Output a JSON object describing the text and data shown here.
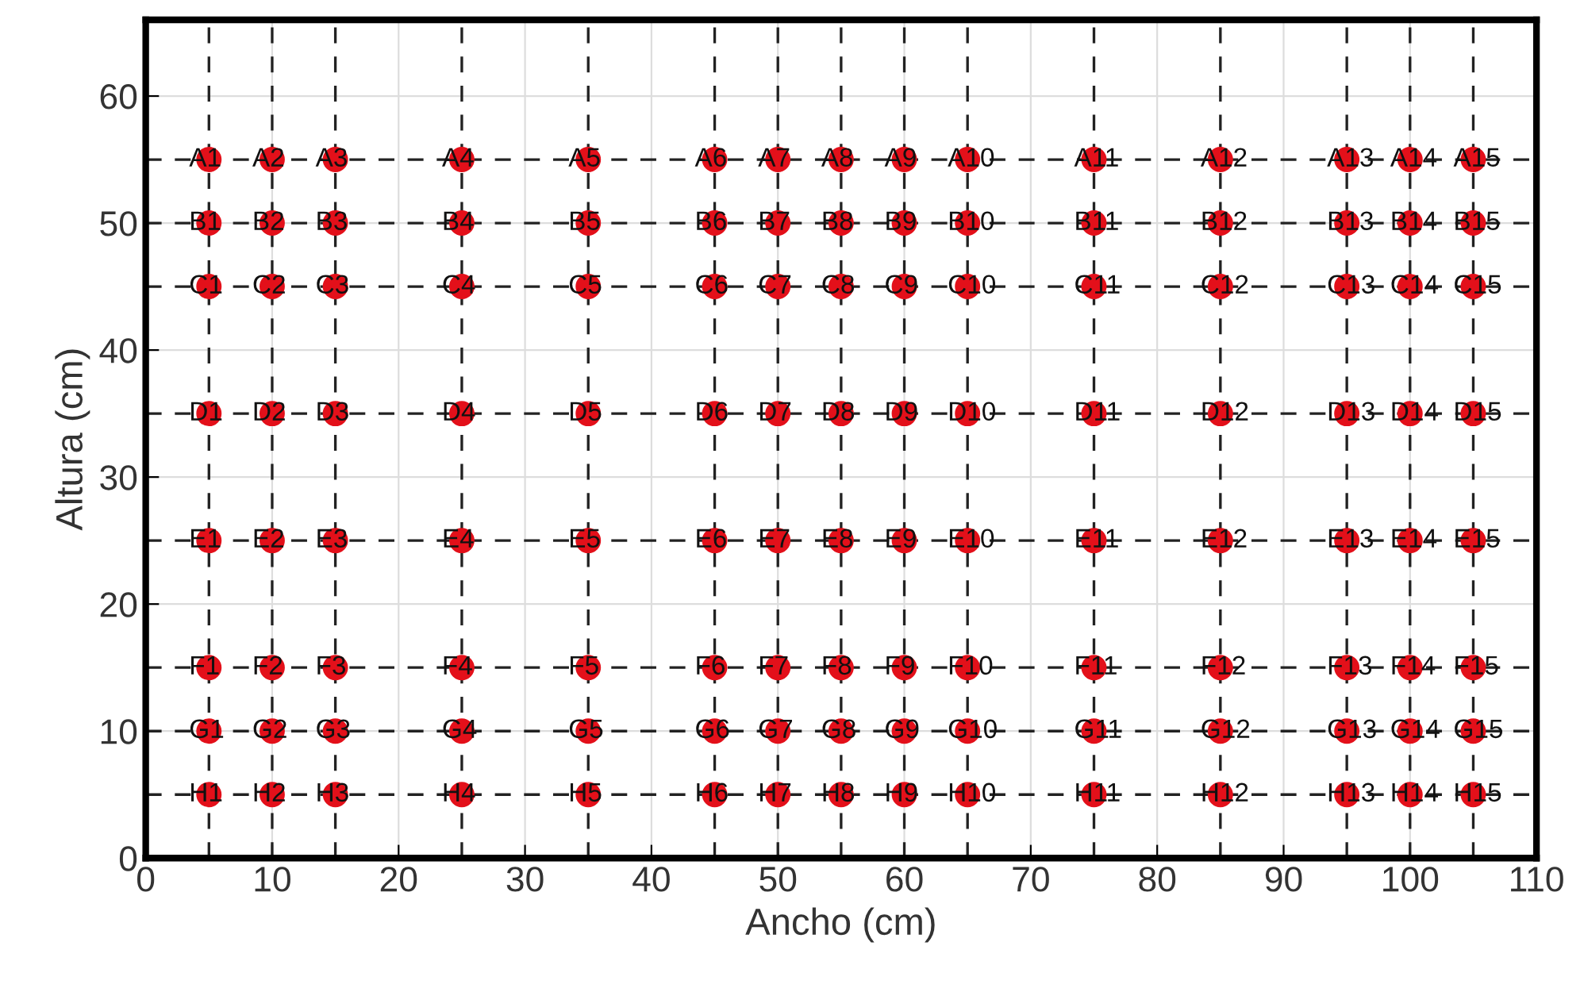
{
  "chart_data": {
    "type": "scatter",
    "xlabel": "Ancho (cm)",
    "ylabel": "Altura (cm)",
    "xlim": [
      0,
      110
    ],
    "ylim": [
      0,
      66
    ],
    "xticks": [
      0,
      10,
      20,
      30,
      40,
      50,
      60,
      70,
      80,
      90,
      100,
      110
    ],
    "yticks": [
      0,
      10,
      20,
      30,
      40,
      50,
      60
    ],
    "grid": true,
    "marker": "circle",
    "series": [
      {
        "color": "#e3101a",
        "x": [
          5,
          10,
          15,
          25,
          35,
          45,
          50,
          55,
          60,
          65,
          75,
          85,
          95,
          100,
          105
        ],
        "values": [
          55,
          55,
          55,
          55,
          55,
          55,
          55,
          55,
          55,
          55,
          55,
          55,
          55,
          55,
          55
        ]
      },
      {
        "color": "#e3101a",
        "x": [
          5,
          10,
          15,
          25,
          35,
          45,
          50,
          55,
          60,
          65,
          75,
          85,
          95,
          100,
          105
        ],
        "values": [
          50,
          50,
          50,
          50,
          50,
          50,
          50,
          50,
          50,
          50,
          50,
          50,
          50,
          50,
          50
        ]
      },
      {
        "color": "#e3101a",
        "x": [
          5,
          10,
          15,
          25,
          35,
          45,
          50,
          55,
          60,
          65,
          75,
          85,
          95,
          100,
          105
        ],
        "values": [
          45,
          45,
          45,
          45,
          45,
          45,
          45,
          45,
          45,
          45,
          45,
          45,
          45,
          45,
          45
        ]
      },
      {
        "color": "#e3101a",
        "x": [
          5,
          10,
          15,
          25,
          35,
          45,
          50,
          55,
          60,
          65,
          75,
          85,
          95,
          100,
          105
        ],
        "values": [
          35,
          35,
          35,
          35,
          35,
          35,
          35,
          35,
          35,
          35,
          35,
          35,
          35,
          35,
          35
        ]
      },
      {
        "color": "#e3101a",
        "x": [
          5,
          10,
          15,
          25,
          35,
          45,
          50,
          55,
          60,
          65,
          75,
          85,
          95,
          100,
          105
        ],
        "values": [
          25,
          25,
          25,
          25,
          25,
          25,
          25,
          25,
          25,
          25,
          25,
          25,
          25,
          25,
          25
        ]
      },
      {
        "color": "#e3101a",
        "x": [
          5,
          10,
          15,
          25,
          35,
          45,
          50,
          55,
          60,
          65,
          75,
          85,
          95,
          100,
          105
        ],
        "values": [
          15,
          15,
          15,
          15,
          15,
          15,
          15,
          15,
          15,
          15,
          15,
          15,
          15,
          15,
          15
        ]
      },
      {
        "color": "#e3101a",
        "x": [
          5,
          10,
          15,
          25,
          35,
          45,
          50,
          55,
          60,
          65,
          75,
          85,
          95,
          100,
          105
        ],
        "values": [
          10,
          10,
          10,
          10,
          10,
          10,
          10,
          10,
          10,
          10,
          10,
          10,
          10,
          10,
          10
        ]
      },
      {
        "color": "#e3101a",
        "x": [
          5,
          10,
          15,
          25,
          35,
          45,
          50,
          55,
          60,
          65,
          75,
          85,
          95,
          100,
          105
        ],
        "values": [
          5,
          5,
          5,
          5,
          5,
          5,
          5,
          5,
          5,
          5,
          5,
          5,
          5,
          5,
          5
        ]
      }
    ],
    "ref_lines": [
      {
        "axis": "x",
        "value": 5,
        "color": "#222222",
        "line_style": "dashed"
      },
      {
        "axis": "x",
        "value": 10,
        "color": "#222222",
        "line_style": "dashed"
      },
      {
        "axis": "x",
        "value": 15,
        "color": "#222222",
        "line_style": "dashed"
      },
      {
        "axis": "x",
        "value": 25,
        "color": "#222222",
        "line_style": "dashed"
      },
      {
        "axis": "x",
        "value": 35,
        "color": "#222222",
        "line_style": "dashed"
      },
      {
        "axis": "x",
        "value": 45,
        "color": "#222222",
        "line_style": "dashed"
      },
      {
        "axis": "x",
        "value": 50,
        "color": "#222222",
        "line_style": "dashed"
      },
      {
        "axis": "x",
        "value": 55,
        "color": "#222222",
        "line_style": "dashed"
      },
      {
        "axis": "x",
        "value": 60,
        "color": "#222222",
        "line_style": "dashed"
      },
      {
        "axis": "x",
        "value": 65,
        "color": "#222222",
        "line_style": "dashed"
      },
      {
        "axis": "x",
        "value": 75,
        "color": "#222222",
        "line_style": "dashed"
      },
      {
        "axis": "x",
        "value": 85,
        "color": "#222222",
        "line_style": "dashed"
      },
      {
        "axis": "x",
        "value": 95,
        "color": "#222222",
        "line_style": "dashed"
      },
      {
        "axis": "x",
        "value": 100,
        "color": "#222222",
        "line_style": "dashed"
      },
      {
        "axis": "x",
        "value": 105,
        "color": "#222222",
        "line_style": "dashed"
      },
      {
        "axis": "y",
        "value": 55,
        "color": "#222222",
        "line_style": "dashed"
      },
      {
        "axis": "y",
        "value": 50,
        "color": "#222222",
        "line_style": "dashed"
      },
      {
        "axis": "y",
        "value": 45,
        "color": "#222222",
        "line_style": "dashed"
      },
      {
        "axis": "y",
        "value": 35,
        "color": "#222222",
        "line_style": "dashed"
      },
      {
        "axis": "y",
        "value": 25,
        "color": "#222222",
        "line_style": "dashed"
      },
      {
        "axis": "y",
        "value": 15,
        "color": "#222222",
        "line_style": "dashed"
      },
      {
        "axis": "y",
        "value": 10,
        "color": "#222222",
        "line_style": "dashed"
      },
      {
        "axis": "y",
        "value": 5,
        "color": "#222222",
        "line_style": "dashed"
      }
    ],
    "annotations": [
      {
        "text": "A1",
        "x": 5,
        "y": 55
      },
      {
        "text": "A2",
        "x": 10,
        "y": 55
      },
      {
        "text": "A3",
        "x": 15,
        "y": 55
      },
      {
        "text": "A4",
        "x": 25,
        "y": 55
      },
      {
        "text": "A5",
        "x": 35,
        "y": 55
      },
      {
        "text": "A6",
        "x": 45,
        "y": 55
      },
      {
        "text": "A7",
        "x": 50,
        "y": 55
      },
      {
        "text": "A8",
        "x": 55,
        "y": 55
      },
      {
        "text": "A9",
        "x": 60,
        "y": 55
      },
      {
        "text": "A10",
        "x": 65,
        "y": 55
      },
      {
        "text": "A11",
        "x": 75,
        "y": 55
      },
      {
        "text": "A12",
        "x": 85,
        "y": 55
      },
      {
        "text": "A13",
        "x": 95,
        "y": 55
      },
      {
        "text": "A14",
        "x": 100,
        "y": 55
      },
      {
        "text": "A15",
        "x": 105,
        "y": 55
      },
      {
        "text": "B1",
        "x": 5,
        "y": 50
      },
      {
        "text": "B2",
        "x": 10,
        "y": 50
      },
      {
        "text": "B3",
        "x": 15,
        "y": 50
      },
      {
        "text": "B4",
        "x": 25,
        "y": 50
      },
      {
        "text": "B5",
        "x": 35,
        "y": 50
      },
      {
        "text": "B6",
        "x": 45,
        "y": 50
      },
      {
        "text": "B7",
        "x": 50,
        "y": 50
      },
      {
        "text": "B8",
        "x": 55,
        "y": 50
      },
      {
        "text": "B9",
        "x": 60,
        "y": 50
      },
      {
        "text": "B10",
        "x": 65,
        "y": 50
      },
      {
        "text": "B11",
        "x": 75,
        "y": 50
      },
      {
        "text": "B12",
        "x": 85,
        "y": 50
      },
      {
        "text": "B13",
        "x": 95,
        "y": 50
      },
      {
        "text": "B14",
        "x": 100,
        "y": 50
      },
      {
        "text": "B15",
        "x": 105,
        "y": 50
      },
      {
        "text": "C1",
        "x": 5,
        "y": 45
      },
      {
        "text": "C2",
        "x": 10,
        "y": 45
      },
      {
        "text": "C3",
        "x": 15,
        "y": 45
      },
      {
        "text": "C4",
        "x": 25,
        "y": 45
      },
      {
        "text": "C5",
        "x": 35,
        "y": 45
      },
      {
        "text": "C6",
        "x": 45,
        "y": 45
      },
      {
        "text": "C7",
        "x": 50,
        "y": 45
      },
      {
        "text": "C8",
        "x": 55,
        "y": 45
      },
      {
        "text": "C9",
        "x": 60,
        "y": 45
      },
      {
        "text": "C10",
        "x": 65,
        "y": 45
      },
      {
        "text": "C11",
        "x": 75,
        "y": 45
      },
      {
        "text": "C12",
        "x": 85,
        "y": 45
      },
      {
        "text": "C13",
        "x": 95,
        "y": 45
      },
      {
        "text": "C14",
        "x": 100,
        "y": 45
      },
      {
        "text": "C15",
        "x": 105,
        "y": 45
      },
      {
        "text": "D1",
        "x": 5,
        "y": 35
      },
      {
        "text": "D2",
        "x": 10,
        "y": 35
      },
      {
        "text": "D3",
        "x": 15,
        "y": 35
      },
      {
        "text": "D4",
        "x": 25,
        "y": 35
      },
      {
        "text": "D5",
        "x": 35,
        "y": 35
      },
      {
        "text": "D6",
        "x": 45,
        "y": 35
      },
      {
        "text": "D7",
        "x": 50,
        "y": 35
      },
      {
        "text": "D8",
        "x": 55,
        "y": 35
      },
      {
        "text": "D9",
        "x": 60,
        "y": 35
      },
      {
        "text": "D10",
        "x": 65,
        "y": 35
      },
      {
        "text": "D11",
        "x": 75,
        "y": 35
      },
      {
        "text": "D12",
        "x": 85,
        "y": 35
      },
      {
        "text": "D13",
        "x": 95,
        "y": 35
      },
      {
        "text": "D14",
        "x": 100,
        "y": 35
      },
      {
        "text": "D15",
        "x": 105,
        "y": 35
      },
      {
        "text": "E1",
        "x": 5,
        "y": 25
      },
      {
        "text": "E2",
        "x": 10,
        "y": 25
      },
      {
        "text": "E3",
        "x": 15,
        "y": 25
      },
      {
        "text": "E4",
        "x": 25,
        "y": 25
      },
      {
        "text": "E5",
        "x": 35,
        "y": 25
      },
      {
        "text": "E6",
        "x": 45,
        "y": 25
      },
      {
        "text": "E7",
        "x": 50,
        "y": 25
      },
      {
        "text": "E8",
        "x": 55,
        "y": 25
      },
      {
        "text": "E9",
        "x": 60,
        "y": 25
      },
      {
        "text": "E10",
        "x": 65,
        "y": 25
      },
      {
        "text": "E11",
        "x": 75,
        "y": 25
      },
      {
        "text": "E12",
        "x": 85,
        "y": 25
      },
      {
        "text": "E13",
        "x": 95,
        "y": 25
      },
      {
        "text": "E14",
        "x": 100,
        "y": 25
      },
      {
        "text": "E15",
        "x": 105,
        "y": 25
      },
      {
        "text": "F1",
        "x": 5,
        "y": 15
      },
      {
        "text": "F2",
        "x": 10,
        "y": 15
      },
      {
        "text": "F3",
        "x": 15,
        "y": 15
      },
      {
        "text": "F4",
        "x": 25,
        "y": 15
      },
      {
        "text": "F5",
        "x": 35,
        "y": 15
      },
      {
        "text": "F6",
        "x": 45,
        "y": 15
      },
      {
        "text": "F7",
        "x": 50,
        "y": 15
      },
      {
        "text": "F8",
        "x": 55,
        "y": 15
      },
      {
        "text": "F9",
        "x": 60,
        "y": 15
      },
      {
        "text": "F10",
        "x": 65,
        "y": 15
      },
      {
        "text": "F11",
        "x": 75,
        "y": 15
      },
      {
        "text": "F12",
        "x": 85,
        "y": 15
      },
      {
        "text": "F13",
        "x": 95,
        "y": 15
      },
      {
        "text": "F14",
        "x": 100,
        "y": 15
      },
      {
        "text": "F15",
        "x": 105,
        "y": 15
      },
      {
        "text": "G1",
        "x": 5,
        "y": 10
      },
      {
        "text": "G2",
        "x": 10,
        "y": 10
      },
      {
        "text": "G3",
        "x": 15,
        "y": 10
      },
      {
        "text": "G4",
        "x": 25,
        "y": 10
      },
      {
        "text": "G5",
        "x": 35,
        "y": 10
      },
      {
        "text": "G6",
        "x": 45,
        "y": 10
      },
      {
        "text": "G7",
        "x": 50,
        "y": 10
      },
      {
        "text": "G8",
        "x": 55,
        "y": 10
      },
      {
        "text": "G9",
        "x": 60,
        "y": 10
      },
      {
        "text": "G10",
        "x": 65,
        "y": 10
      },
      {
        "text": "G11",
        "x": 75,
        "y": 10
      },
      {
        "text": "G12",
        "x": 85,
        "y": 10
      },
      {
        "text": "G13",
        "x": 95,
        "y": 10
      },
      {
        "text": "G14",
        "x": 100,
        "y": 10
      },
      {
        "text": "G15",
        "x": 105,
        "y": 10
      },
      {
        "text": "H1",
        "x": 5,
        "y": 5
      },
      {
        "text": "H2",
        "x": 10,
        "y": 5
      },
      {
        "text": "H3",
        "x": 15,
        "y": 5
      },
      {
        "text": "H4",
        "x": 25,
        "y": 5
      },
      {
        "text": "H5",
        "x": 35,
        "y": 5
      },
      {
        "text": "H6",
        "x": 45,
        "y": 5
      },
      {
        "text": "H7",
        "x": 50,
        "y": 5
      },
      {
        "text": "H8",
        "x": 55,
        "y": 5
      },
      {
        "text": "H9",
        "x": 60,
        "y": 5
      },
      {
        "text": "H10",
        "x": 65,
        "y": 5
      },
      {
        "text": "H11",
        "x": 75,
        "y": 5
      },
      {
        "text": "H12",
        "x": 85,
        "y": 5
      },
      {
        "text": "H13",
        "x": 95,
        "y": 5
      },
      {
        "text": "H14",
        "x": 100,
        "y": 5
      },
      {
        "text": "H15",
        "x": 105,
        "y": 5
      }
    ]
  }
}
